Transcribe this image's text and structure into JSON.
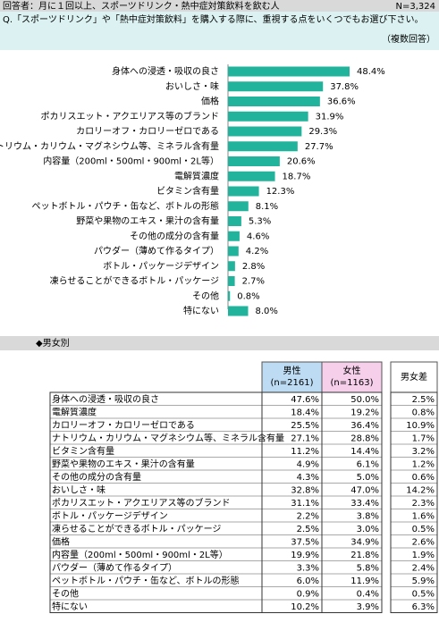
{
  "header": {
    "respondents": "回答者：月に１回以上、スポーツドリンク・熱中症対策飲料を飲む人",
    "n": "N=3,324",
    "question": "Q.「スポーツドリンク」や「熱中症対策飲料」を購入する際に、重視する点をいくつでもお選び下さい。",
    "note": "（複数回答）"
  },
  "chart_data": {
    "type": "bar",
    "orientation": "horizontal",
    "color": "#22b39c",
    "categories": [
      "身体への浸透・吸収の良さ",
      "おいしさ・味",
      "価格",
      "ポカリスエット・アクエリアス等のブランド",
      "カロリーオフ・カロリーゼロである",
      "ナトリウム・カリウム・マグネシウム等、ミネラル含有量",
      "内容量（200ml・500ml・900ml・2L等）",
      "電解質濃度",
      "ビタミン含有量",
      "ペットボトル・パウチ・缶など、ボトルの形態",
      "野菜や果物のエキス・果汁の含有量",
      "その他の成分の含有量",
      "パウダー（薄めて作るタイプ）",
      "ボトル・パッケージデザイン",
      "凍らせることができるボトル・パッケージ",
      "その他",
      "特にない"
    ],
    "values": [
      48.4,
      37.8,
      36.6,
      31.9,
      29.3,
      27.7,
      20.6,
      18.7,
      12.3,
      8.1,
      5.3,
      4.6,
      4.2,
      2.8,
      2.7,
      0.8,
      8.0
    ],
    "value_labels": [
      "48.4%",
      "37.8%",
      "36.6%",
      "31.9%",
      "29.3%",
      "27.7%",
      "20.6%",
      "18.7%",
      "12.3%",
      "8.1%",
      "5.3%",
      "4.6%",
      "4.2%",
      "2.8%",
      "2.7%",
      "0.8%",
      "8.0%"
    ]
  },
  "table": {
    "section": "◆男女別",
    "columns": [
      {
        "name": "男性",
        "sub": "(n=2161)"
      },
      {
        "name": "女性",
        "sub": "(n=1163)"
      },
      {
        "name": "男女差"
      }
    ],
    "rows": [
      [
        "身体への浸透・吸収の良さ",
        "47.6%",
        "50.0%",
        "2.5%"
      ],
      [
        "電解質濃度",
        "18.4%",
        "19.2%",
        "0.8%"
      ],
      [
        "カロリーオフ・カロリーゼロである",
        "25.5%",
        "36.4%",
        "10.9%"
      ],
      [
        "ナトリウム・カリウム・マグネシウム等、ミネラル含有量",
        "27.1%",
        "28.8%",
        "1.7%"
      ],
      [
        "ビタミン含有量",
        "11.2%",
        "14.4%",
        "3.2%"
      ],
      [
        "野菜や果物のエキス・果汁の含有量",
        "4.9%",
        "6.1%",
        "1.2%"
      ],
      [
        "その他の成分の含有量",
        "4.3%",
        "5.0%",
        "0.6%"
      ],
      [
        "おいしさ・味",
        "32.8%",
        "47.0%",
        "14.2%"
      ],
      [
        "ポカリスエット・アクエリアス等のブランド",
        "31.1%",
        "33.4%",
        "2.3%"
      ],
      [
        "ボトル・パッケージデザイン",
        "2.2%",
        "3.8%",
        "1.6%"
      ],
      [
        "凍らせることができるボトル・パッケージ",
        "2.5%",
        "3.0%",
        "0.5%"
      ],
      [
        "価格",
        "37.5%",
        "34.9%",
        "2.6%"
      ],
      [
        "内容量（200ml・500ml・900ml・2L等）",
        "19.9%",
        "21.8%",
        "1.9%"
      ],
      [
        "パウダー（薄めて作るタイプ）",
        "3.3%",
        "5.8%",
        "2.4%"
      ],
      [
        "ペットボトル・パウチ・缶など、ボトルの形態",
        "6.0%",
        "11.9%",
        "5.9%"
      ],
      [
        "その他",
        "0.9%",
        "0.4%",
        "0.5%"
      ],
      [
        "特にない",
        "10.2%",
        "3.9%",
        "6.3%"
      ]
    ]
  }
}
